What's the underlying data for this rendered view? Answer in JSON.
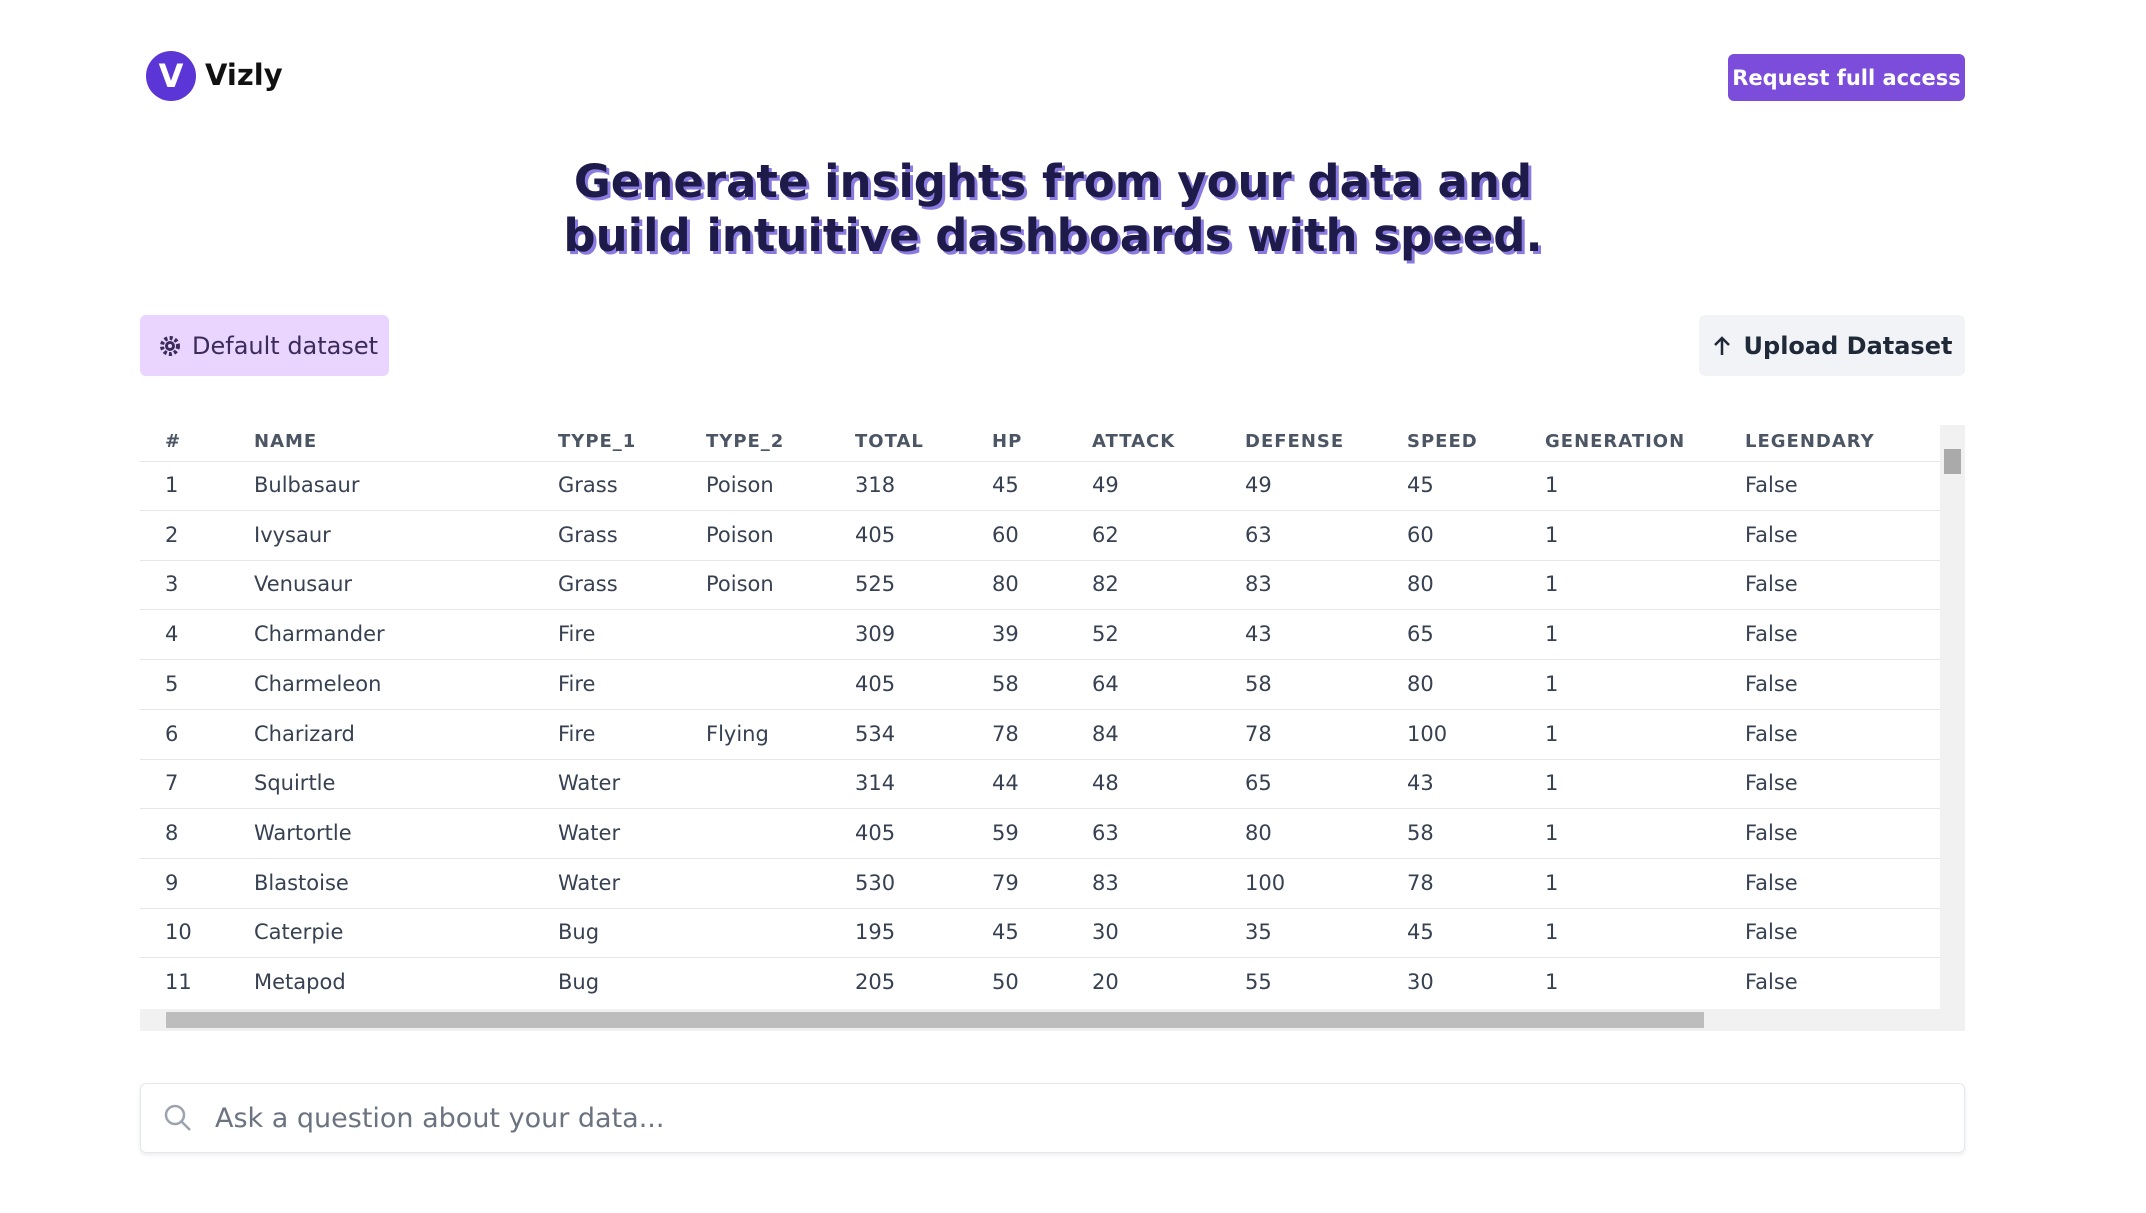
{
  "header": {
    "brand": "Vizly",
    "cta": "Request full access"
  },
  "hero": {
    "lines": [
      "Generate insights from your data and",
      "build intuitive dashboards with speed."
    ]
  },
  "toolbar": {
    "default_dataset": "Default dataset",
    "upload": "Upload Dataset"
  },
  "table": {
    "columns": [
      "#",
      "NAME",
      "TYPE_1",
      "TYPE_2",
      "TOTAL",
      "HP",
      "ATTACK",
      "DEFENSE",
      "SPEED",
      "GENERATION",
      "LEGENDARY"
    ],
    "rows": [
      [
        "1",
        "Bulbasaur",
        "Grass",
        "Poison",
        "318",
        "45",
        "49",
        "49",
        "45",
        "1",
        "False"
      ],
      [
        "2",
        "Ivysaur",
        "Grass",
        "Poison",
        "405",
        "60",
        "62",
        "63",
        "60",
        "1",
        "False"
      ],
      [
        "3",
        "Venusaur",
        "Grass",
        "Poison",
        "525",
        "80",
        "82",
        "83",
        "80",
        "1",
        "False"
      ],
      [
        "4",
        "Charmander",
        "Fire",
        null,
        "309",
        "39",
        "52",
        "43",
        "65",
        "1",
        "False"
      ],
      [
        "5",
        "Charmeleon",
        "Fire",
        null,
        "405",
        "58",
        "64",
        "58",
        "80",
        "1",
        "False"
      ],
      [
        "6",
        "Charizard",
        "Fire",
        "Flying",
        "534",
        "78",
        "84",
        "78",
        "100",
        "1",
        "False"
      ],
      [
        "7",
        "Squirtle",
        "Water",
        null,
        "314",
        "44",
        "48",
        "65",
        "43",
        "1",
        "False"
      ],
      [
        "8",
        "Wartortle",
        "Water",
        null,
        "405",
        "59",
        "63",
        "80",
        "58",
        "1",
        "False"
      ],
      [
        "9",
        "Blastoise",
        "Water",
        null,
        "530",
        "79",
        "83",
        "100",
        "78",
        "1",
        "False"
      ],
      [
        "10",
        "Caterpie",
        "Bug",
        null,
        "195",
        "45",
        "30",
        "35",
        "45",
        "1",
        "False"
      ],
      [
        "11",
        "Metapod",
        "Bug",
        null,
        "205",
        "50",
        "20",
        "55",
        "30",
        "1",
        "False"
      ]
    ]
  },
  "search": {
    "placeholder": "Ask a question about your data..."
  }
}
